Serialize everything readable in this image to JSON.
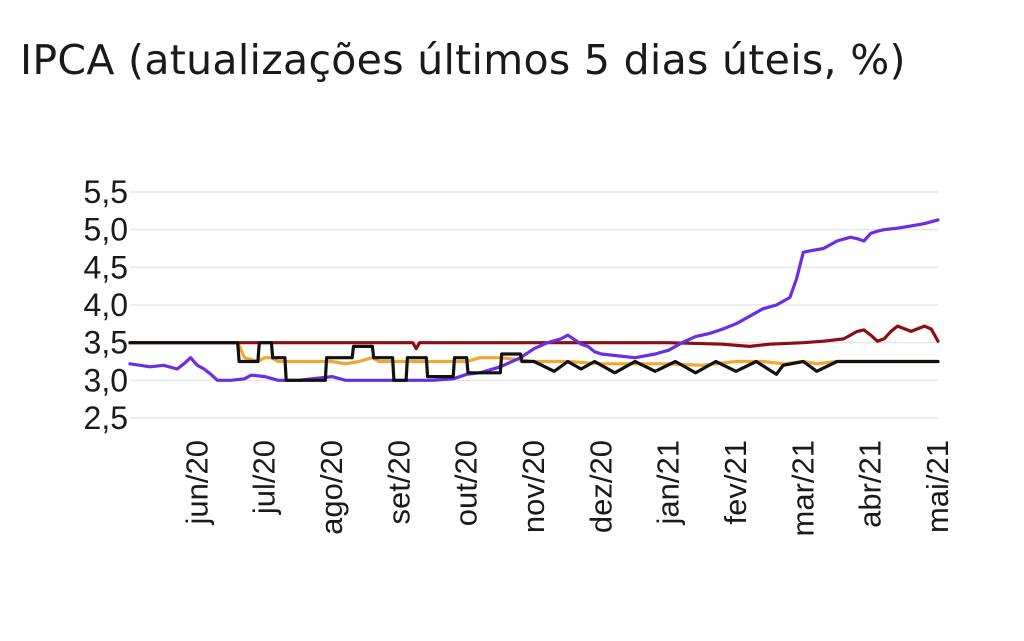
{
  "chart_data": {
    "type": "line",
    "title": "IPCA (atualizações últimos 5 dias úteis, %)",
    "xlabel": "",
    "ylabel": "",
    "ylim": [
      2.5,
      5.5
    ],
    "y_ticks": [
      "5,5",
      "5,0",
      "4,5",
      "4,0",
      "3,5",
      "3,0",
      "2,5"
    ],
    "y_tick_values": [
      5.5,
      5.0,
      4.5,
      4.0,
      3.5,
      3.0,
      2.5
    ],
    "x_range": [
      0,
      12
    ],
    "x_ticks": [
      "jun/20",
      "jul/20",
      "ago/20",
      "set/20",
      "out/20",
      "nov/20",
      "dez/20",
      "jan/21",
      "fev/21",
      "mar/21",
      "abr/21",
      "mai/21"
    ],
    "x_tick_values": [
      1,
      2,
      3,
      4,
      5,
      6,
      7,
      8,
      9,
      10,
      11,
      12
    ],
    "grid": true,
    "legend": "none",
    "colors": {
      "purple": "#6a2ee6",
      "darkred": "#8b0f12",
      "orange": "#f0a830",
      "black": "#111111"
    },
    "series": [
      {
        "color": "#f0a830",
        "x": [
          0,
          1.6,
          1.7,
          1.9,
          2.0,
          2.1,
          2.2,
          3.0,
          3.2,
          3.4,
          3.6,
          3.7,
          3.9,
          4.2,
          5.0,
          5.2,
          5.5,
          6.0,
          6.5,
          7.0,
          8.0,
          8.5,
          9.0,
          9.4,
          9.7,
          10.0,
          10.2,
          10.5,
          11.0,
          12.0
        ],
        "y": [
          3.5,
          3.5,
          3.3,
          3.25,
          3.3,
          3.3,
          3.25,
          3.25,
          3.22,
          3.25,
          3.3,
          3.25,
          3.25,
          3.25,
          3.25,
          3.3,
          3.3,
          3.25,
          3.25,
          3.22,
          3.22,
          3.2,
          3.25,
          3.25,
          3.22,
          3.25,
          3.22,
          3.25,
          3.25,
          3.25
        ]
      },
      {
        "color": "#8b0f12",
        "x": [
          0,
          4.2,
          4.25,
          4.3,
          5.0,
          6.0,
          7.0,
          8.0,
          8.8,
          9.2,
          9.5,
          10.0,
          10.3,
          10.6,
          10.8,
          10.9,
          11.0,
          11.1,
          11.2,
          11.3,
          11.4,
          11.6,
          11.8,
          11.9,
          12.0
        ],
        "y": [
          3.5,
          3.5,
          3.42,
          3.5,
          3.5,
          3.5,
          3.5,
          3.5,
          3.48,
          3.45,
          3.48,
          3.5,
          3.52,
          3.55,
          3.65,
          3.67,
          3.6,
          3.52,
          3.55,
          3.65,
          3.72,
          3.65,
          3.72,
          3.68,
          3.52
        ]
      },
      {
        "color": "#6a2ee6",
        "x": [
          0,
          0.3,
          0.5,
          0.7,
          0.8,
          0.9,
          1.0,
          1.1,
          1.2,
          1.3,
          1.5,
          1.7,
          1.8,
          2.0,
          2.2,
          2.5,
          3.0,
          3.2,
          3.3,
          3.5,
          4.0,
          4.5,
          4.8,
          5.0,
          5.2,
          5.5,
          5.8,
          6.0,
          6.2,
          6.4,
          6.5,
          6.7,
          6.8,
          6.9,
          7.0,
          7.5,
          7.8,
          8.0,
          8.2,
          8.4,
          8.6,
          8.8,
          9.0,
          9.2,
          9.4,
          9.6,
          9.8,
          9.9,
          10.0,
          10.1,
          10.3,
          10.5,
          10.7,
          10.8,
          10.9,
          11.0,
          11.1,
          11.2,
          11.4,
          11.6,
          11.8,
          12.0
        ],
        "y": [
          3.22,
          3.18,
          3.2,
          3.15,
          3.22,
          3.3,
          3.2,
          3.15,
          3.08,
          3.0,
          3.0,
          3.02,
          3.07,
          3.05,
          3.0,
          3.0,
          3.05,
          3.0,
          3.0,
          3.0,
          3.0,
          3.0,
          3.02,
          3.08,
          3.1,
          3.18,
          3.3,
          3.42,
          3.5,
          3.55,
          3.6,
          3.48,
          3.45,
          3.38,
          3.35,
          3.3,
          3.35,
          3.4,
          3.5,
          3.58,
          3.62,
          3.68,
          3.75,
          3.85,
          3.95,
          4.0,
          4.1,
          4.35,
          4.7,
          4.72,
          4.75,
          4.85,
          4.9,
          4.88,
          4.85,
          4.95,
          4.98,
          5.0,
          5.02,
          5.05,
          5.08,
          5.13
        ]
      },
      {
        "color": "#111111",
        "x": [
          0,
          1.6,
          1.62,
          1.9,
          1.92,
          2.1,
          2.12,
          2.3,
          2.32,
          2.9,
          2.92,
          3.3,
          3.32,
          3.6,
          3.62,
          3.9,
          3.92,
          4.1,
          4.12,
          4.4,
          4.42,
          4.8,
          4.82,
          5.0,
          5.02,
          5.5,
          5.52,
          5.8,
          5.82,
          6.0,
          6.3,
          6.5,
          6.7,
          6.9,
          7.2,
          7.5,
          7.8,
          8.1,
          8.4,
          8.7,
          9.0,
          9.3,
          9.6,
          9.7,
          10.0,
          10.2,
          10.5,
          11.0,
          12.0
        ],
        "y": [
          3.5,
          3.5,
          3.25,
          3.25,
          3.5,
          3.5,
          3.3,
          3.3,
          3.0,
          3.0,
          3.3,
          3.3,
          3.45,
          3.45,
          3.3,
          3.3,
          3.0,
          3.0,
          3.3,
          3.3,
          3.05,
          3.05,
          3.3,
          3.3,
          3.1,
          3.1,
          3.35,
          3.35,
          3.25,
          3.25,
          3.12,
          3.25,
          3.15,
          3.25,
          3.1,
          3.25,
          3.12,
          3.25,
          3.1,
          3.25,
          3.12,
          3.25,
          3.08,
          3.2,
          3.25,
          3.12,
          3.25,
          3.25,
          3.25
        ]
      }
    ]
  }
}
